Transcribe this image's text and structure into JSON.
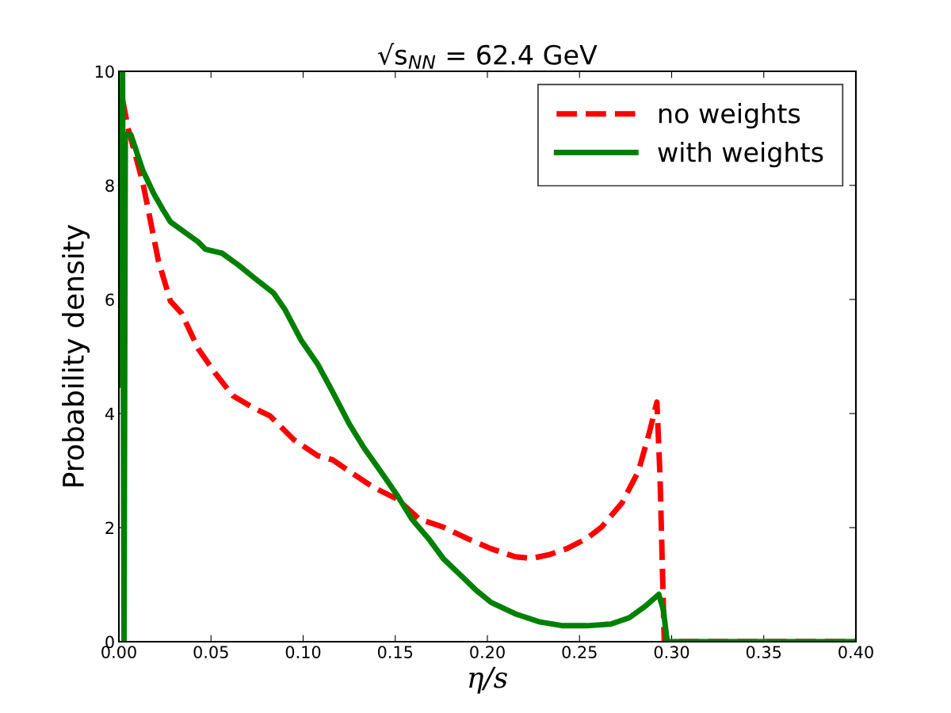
{
  "chart_data": {
    "type": "line",
    "title": "√s$_{NN}$ = 62.4 GeV",
    "xlabel": "η/s",
    "ylabel": "Probability density",
    "xlim": [
      0,
      0.4
    ],
    "ylim": [
      0,
      10
    ],
    "xticks": [
      {
        "value": 0,
        "label": "0.00"
      },
      {
        "value": 0.05,
        "label": "0.05"
      },
      {
        "value": 0.1,
        "label": "0.10"
      },
      {
        "value": 0.15,
        "label": "0.15"
      },
      {
        "value": 0.2,
        "label": "0.20"
      },
      {
        "value": 0.25,
        "label": "0.25"
      },
      {
        "value": 0.3,
        "label": "0.30"
      },
      {
        "value": 0.35,
        "label": "0.35"
      },
      {
        "value": 0.4,
        "label": "0.40"
      }
    ],
    "yticks": [
      0,
      2,
      4,
      6,
      8,
      10
    ],
    "grid": false,
    "legend": "top right",
    "marker": "none",
    "series": [
      {
        "name": "no weights",
        "color": "#ff0000",
        "line_style": "dashed",
        "x": [
          0.002,
          0.005,
          0.013,
          0.0215,
          0.028,
          0.034,
          0.043,
          0.052,
          0.062,
          0.073,
          0.082,
          0.095,
          0.108,
          0.116,
          0.125,
          0.138,
          0.151,
          0.163,
          0.176,
          0.189,
          0.202,
          0.215,
          0.224,
          0.234,
          0.243,
          0.254,
          0.262,
          0.273,
          0.282,
          0.288,
          0.292,
          0.2937,
          0.296,
          0.3,
          0.35,
          0.4
        ],
        "values": [
          9.5,
          9.0,
          8.05,
          6.67,
          5.97,
          5.76,
          5.14,
          4.72,
          4.31,
          4.1,
          3.96,
          3.54,
          3.26,
          3.19,
          2.99,
          2.71,
          2.5,
          2.15,
          2.01,
          1.81,
          1.63,
          1.49,
          1.46,
          1.53,
          1.63,
          1.81,
          2.01,
          2.43,
          2.99,
          3.68,
          4.2,
          2.9,
          0,
          0,
          0,
          0
        ]
      },
      {
        "name": "with weights",
        "color": "#008000",
        "line_style": "solid",
        "x": [
          0.0012,
          0.002,
          0.0028,
          0.0035,
          0.0065,
          0.013,
          0.019,
          0.024,
          0.028,
          0.037,
          0.043,
          0.047,
          0.056,
          0.065,
          0.073,
          0.084,
          0.09,
          0.099,
          0.108,
          0.116,
          0.125,
          0.133,
          0.142,
          0.151,
          0.159,
          0.168,
          0.176,
          0.185,
          0.194,
          0.202,
          0.215,
          0.228,
          0.241,
          0.254,
          0.267,
          0.277,
          0.286,
          0.293,
          0.2955,
          0.2976,
          0.3,
          0.35,
          0.4
        ],
        "values": [
          4.5,
          10,
          0,
          8.9,
          8.89,
          8.26,
          7.85,
          7.57,
          7.36,
          7.15,
          7.01,
          6.88,
          6.81,
          6.6,
          6.39,
          6.11,
          5.83,
          5.28,
          4.86,
          4.38,
          3.82,
          3.4,
          2.99,
          2.57,
          2.15,
          1.81,
          1.46,
          1.18,
          0.9,
          0.69,
          0.49,
          0.35,
          0.28,
          0.28,
          0.31,
          0.42,
          0.63,
          0.83,
          0.56,
          0,
          0,
          0,
          0
        ]
      }
    ]
  }
}
